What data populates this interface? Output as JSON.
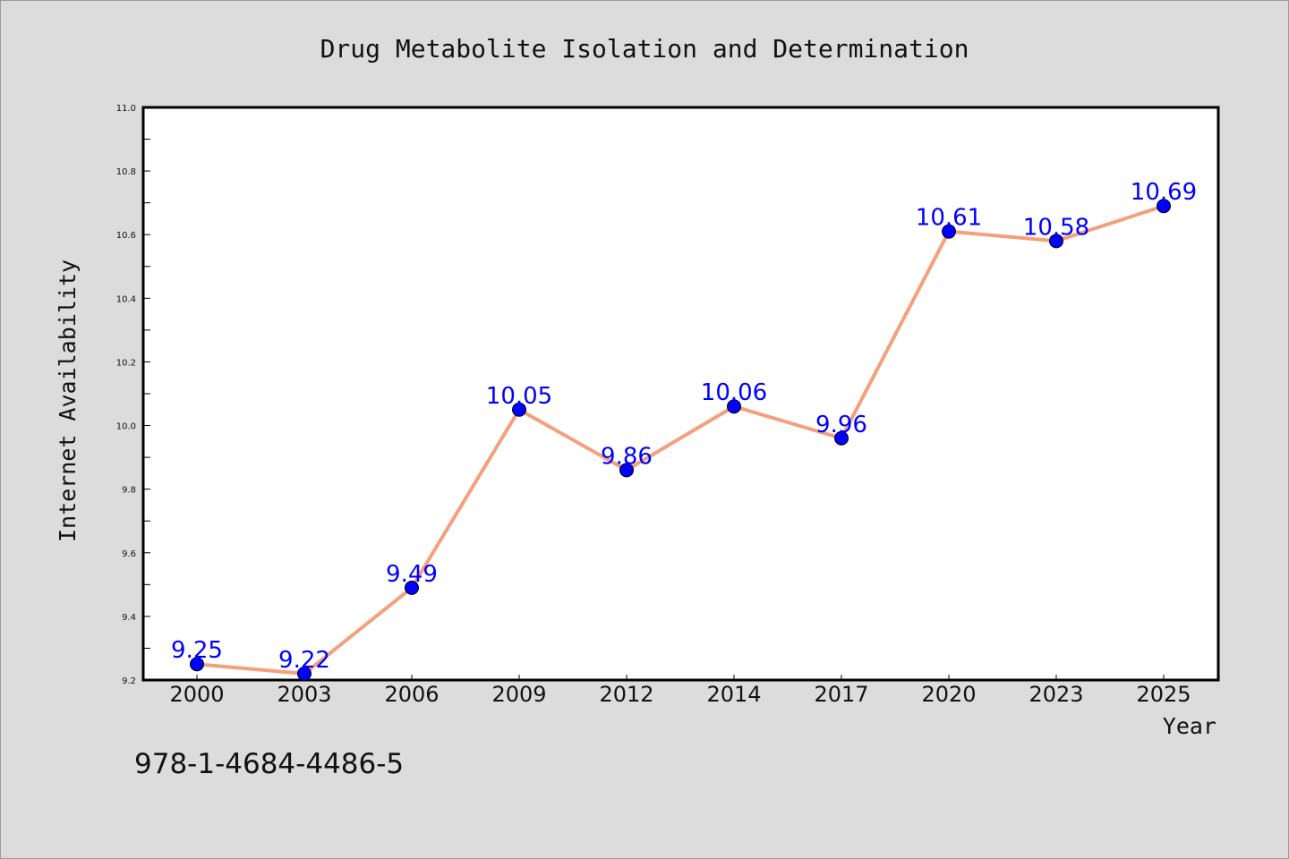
{
  "chart_data": {
    "type": "line",
    "title": "Drug Metabolite Isolation and Determination",
    "xlabel": "Year",
    "ylabel": "Internet Availability",
    "categories": [
      "2000",
      "2003",
      "2006",
      "2009",
      "2012",
      "2014",
      "2017",
      "2020",
      "2023",
      "2025"
    ],
    "series": [
      {
        "values": [
          9.25,
          9.22,
          9.49,
          10.05,
          9.86,
          10.06,
          9.96,
          10.61,
          10.58,
          10.69
        ]
      }
    ],
    "data_labels": [
      "9.25",
      "9.22",
      "9.49",
      "10.05",
      "9.86",
      "10.06",
      "9.96",
      "10.61",
      "10.58",
      "10.69"
    ],
    "ylim": [
      9.2,
      11.0
    ],
    "yticks": [
      "9.2",
      "9.4",
      "9.6",
      "9.8",
      "10.0",
      "10.2",
      "10.4",
      "10.6",
      "10.8",
      "11.0"
    ],
    "grid": false,
    "line_color": "#f4a07c",
    "marker_color": "#0000ff",
    "label_color": "#0000ff"
  },
  "footer": {
    "isbn": "978-1-4684-4486-5"
  }
}
